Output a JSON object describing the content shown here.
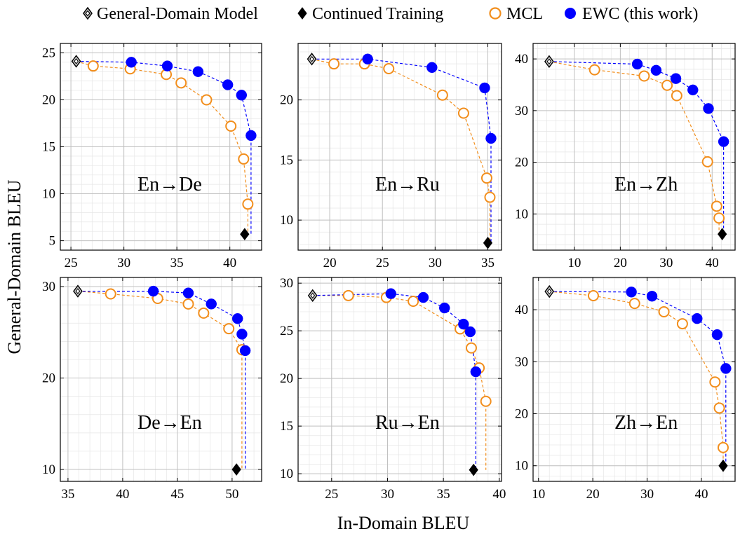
{
  "legend": {
    "general": "General-Domain Model",
    "continued": "Continued Training",
    "mcl": "MCL",
    "ewc": "EWC (this work)"
  },
  "axes": {
    "xlabel": "In-Domain BLEU",
    "ylabel": "General-Domain BLEU"
  },
  "colors": {
    "mcl": "#f28e1c",
    "ewc": "#0000ff",
    "general_fill": "#c8c8c8",
    "continued_fill": "#000000",
    "grid_major": "#c0c0c0",
    "grid_minor": "#e6e6e6"
  },
  "chart_data": [
    {
      "type": "scatter",
      "label": "En→De",
      "xlim": [
        24,
        43
      ],
      "ylim": [
        4,
        26
      ],
      "xticks": [
        25,
        30,
        35,
        40
      ],
      "yticks": [
        5,
        10,
        15,
        20,
        25
      ],
      "general": [
        25.5,
        24.1
      ],
      "continued": [
        41.4,
        5.7
      ],
      "series": [
        {
          "name": "MCL",
          "x": [
            25.5,
            27.1,
            30.6,
            34.0,
            35.4,
            37.8,
            40.1,
            41.3,
            41.7,
            41.7
          ],
          "y": [
            24.1,
            23.6,
            23.3,
            22.7,
            21.8,
            20.0,
            17.2,
            13.7,
            8.9,
            5.7
          ]
        },
        {
          "name": "EWC (this work)",
          "x": [
            25.5,
            30.7,
            34.1,
            37.0,
            39.8,
            41.1,
            42.0,
            42.0
          ],
          "y": [
            24.1,
            24.0,
            23.6,
            23.0,
            21.6,
            20.5,
            16.2,
            5.7
          ]
        }
      ]
    },
    {
      "type": "scatter",
      "label": "En→Ru",
      "xlim": [
        17,
        36.3
      ],
      "ylim": [
        7.5,
        24.7
      ],
      "xticks": [
        20,
        25,
        30,
        35
      ],
      "yticks": [
        10,
        15,
        20
      ],
      "general": [
        18.3,
        23.4
      ],
      "continued": [
        35.0,
        8.1
      ],
      "series": [
        {
          "name": "MCL",
          "x": [
            18.3,
            20.4,
            23.3,
            25.6,
            30.7,
            32.7,
            34.9,
            35.2,
            35.2
          ],
          "y": [
            23.4,
            23.0,
            23.0,
            22.6,
            20.4,
            18.9,
            13.5,
            11.9,
            8.1
          ]
        },
        {
          "name": "EWC (this work)",
          "x": [
            18.3,
            23.6,
            29.7,
            34.7,
            35.3,
            35.3
          ],
          "y": [
            23.4,
            23.4,
            22.7,
            21.0,
            16.8,
            8.1
          ]
        }
      ]
    },
    {
      "type": "scatter",
      "label": "En→Zh",
      "xlim": [
        1,
        45
      ],
      "ylim": [
        3,
        43
      ],
      "xticks": [
        10,
        20,
        30,
        40
      ],
      "yticks": [
        10,
        20,
        30,
        40
      ],
      "general": [
        4.5,
        39.5
      ],
      "continued": [
        42.2,
        6.1
      ],
      "series": [
        {
          "name": "MCL",
          "x": [
            4.5,
            14.4,
            25.2,
            30.2,
            32.3,
            39.0,
            41.0,
            41.5,
            41.5
          ],
          "y": [
            39.5,
            37.9,
            36.7,
            34.9,
            32.9,
            20.1,
            11.5,
            9.2,
            6.1
          ]
        },
        {
          "name": "EWC (this work)",
          "x": [
            4.5,
            23.7,
            27.8,
            32.1,
            35.8,
            39.2,
            42.5,
            42.5
          ],
          "y": [
            39.5,
            39.0,
            37.8,
            36.2,
            34.0,
            30.4,
            24.0,
            6.1
          ]
        }
      ]
    },
    {
      "type": "scatter",
      "label": "De→En",
      "xlim": [
        34.3,
        52.7
      ],
      "ylim": [
        8.7,
        31
      ],
      "xticks": [
        35,
        40,
        45,
        50
      ],
      "yticks": [
        10,
        20,
        30
      ],
      "general": [
        35.9,
        29.5
      ],
      "continued": [
        50.4,
        10.0
      ],
      "series": [
        {
          "name": "MCL",
          "x": [
            35.9,
            38.9,
            43.2,
            46.0,
            47.4,
            49.7,
            50.9,
            50.9
          ],
          "y": [
            29.5,
            29.2,
            28.7,
            28.1,
            27.1,
            25.4,
            23.1,
            10.0
          ]
        },
        {
          "name": "EWC (this work)",
          "x": [
            35.9,
            42.8,
            46.0,
            48.1,
            50.5,
            50.9,
            51.2,
            51.2
          ],
          "y": [
            29.5,
            29.5,
            29.3,
            28.1,
            26.5,
            24.8,
            23.0,
            10.0
          ]
        }
      ]
    },
    {
      "type": "scatter",
      "label": "Ru→En",
      "xlim": [
        22,
        40.2
      ],
      "ylim": [
        9.2,
        30.6
      ],
      "xticks": [
        25,
        30,
        35,
        40
      ],
      "yticks": [
        10,
        15,
        20,
        25,
        30
      ],
      "general": [
        23.3,
        28.7
      ],
      "continued": [
        37.7,
        10.4
      ],
      "series": [
        {
          "name": "MCL",
          "x": [
            23.3,
            26.5,
            29.9,
            32.3,
            36.5,
            37.5,
            38.2,
            38.8,
            38.8
          ],
          "y": [
            28.7,
            28.7,
            28.5,
            28.1,
            25.2,
            23.2,
            21.1,
            17.6,
            10.4
          ]
        },
        {
          "name": "EWC (this work)",
          "x": [
            23.3,
            30.3,
            33.2,
            35.1,
            36.8,
            37.4,
            37.9,
            37.9
          ],
          "y": [
            28.7,
            28.9,
            28.5,
            27.4,
            25.7,
            24.9,
            20.7,
            10.4
          ]
        }
      ]
    },
    {
      "type": "scatter",
      "label": "Zh→En",
      "xlim": [
        9,
        46.2
      ],
      "ylim": [
        7,
        46.2
      ],
      "xticks": [
        10,
        20,
        30,
        40
      ],
      "yticks": [
        10,
        20,
        30,
        40
      ],
      "general": [
        12.0,
        43.5
      ],
      "continued": [
        44.0,
        10.0
      ],
      "series": [
        {
          "name": "MCL",
          "x": [
            12.0,
            20.1,
            27.7,
            33.1,
            36.5,
            42.5,
            43.3,
            44.0,
            44.0
          ],
          "y": [
            43.5,
            42.7,
            41.2,
            39.6,
            37.3,
            26.1,
            21.1,
            13.5,
            10.0
          ]
        },
        {
          "name": "EWC (this work)",
          "x": [
            12.0,
            27.1,
            30.9,
            39.2,
            42.9,
            44.5,
            44.5
          ],
          "y": [
            43.5,
            43.4,
            42.6,
            38.3,
            35.2,
            28.7,
            10.0
          ]
        }
      ]
    }
  ]
}
